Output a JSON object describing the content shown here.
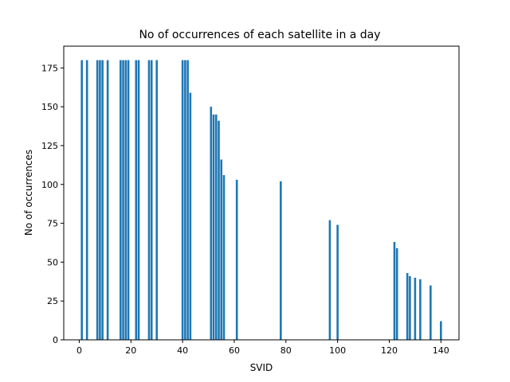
{
  "chart_data": {
    "type": "bar",
    "title": "No of occurrences of each satellite in a day",
    "xlabel": "SVID",
    "ylabel": "No of occurrences",
    "xlim": [
      -6,
      147
    ],
    "ylim": [
      0,
      189
    ],
    "xticks": [
      0,
      20,
      40,
      60,
      80,
      100,
      120,
      140
    ],
    "yticks": [
      0,
      25,
      50,
      75,
      100,
      125,
      150,
      175
    ],
    "grid": false,
    "bar_color": "#1f77b4",
    "bar_width": 0.8,
    "x": [
      1,
      3,
      7,
      8,
      9,
      11,
      16,
      17,
      18,
      19,
      22,
      23,
      27,
      28,
      30,
      40,
      41,
      42,
      43,
      51,
      52,
      53,
      54,
      55,
      56,
      61,
      78,
      97,
      100,
      122,
      123,
      127,
      128,
      130,
      132,
      136,
      140
    ],
    "values": [
      180,
      180,
      180,
      180,
      180,
      180,
      180,
      180,
      180,
      180,
      180,
      180,
      180,
      180,
      180,
      180,
      180,
      180,
      159,
      150,
      145,
      145,
      141,
      116,
      106,
      103,
      102,
      77,
      74,
      63,
      59,
      43,
      41,
      40,
      39,
      35,
      12
    ]
  }
}
